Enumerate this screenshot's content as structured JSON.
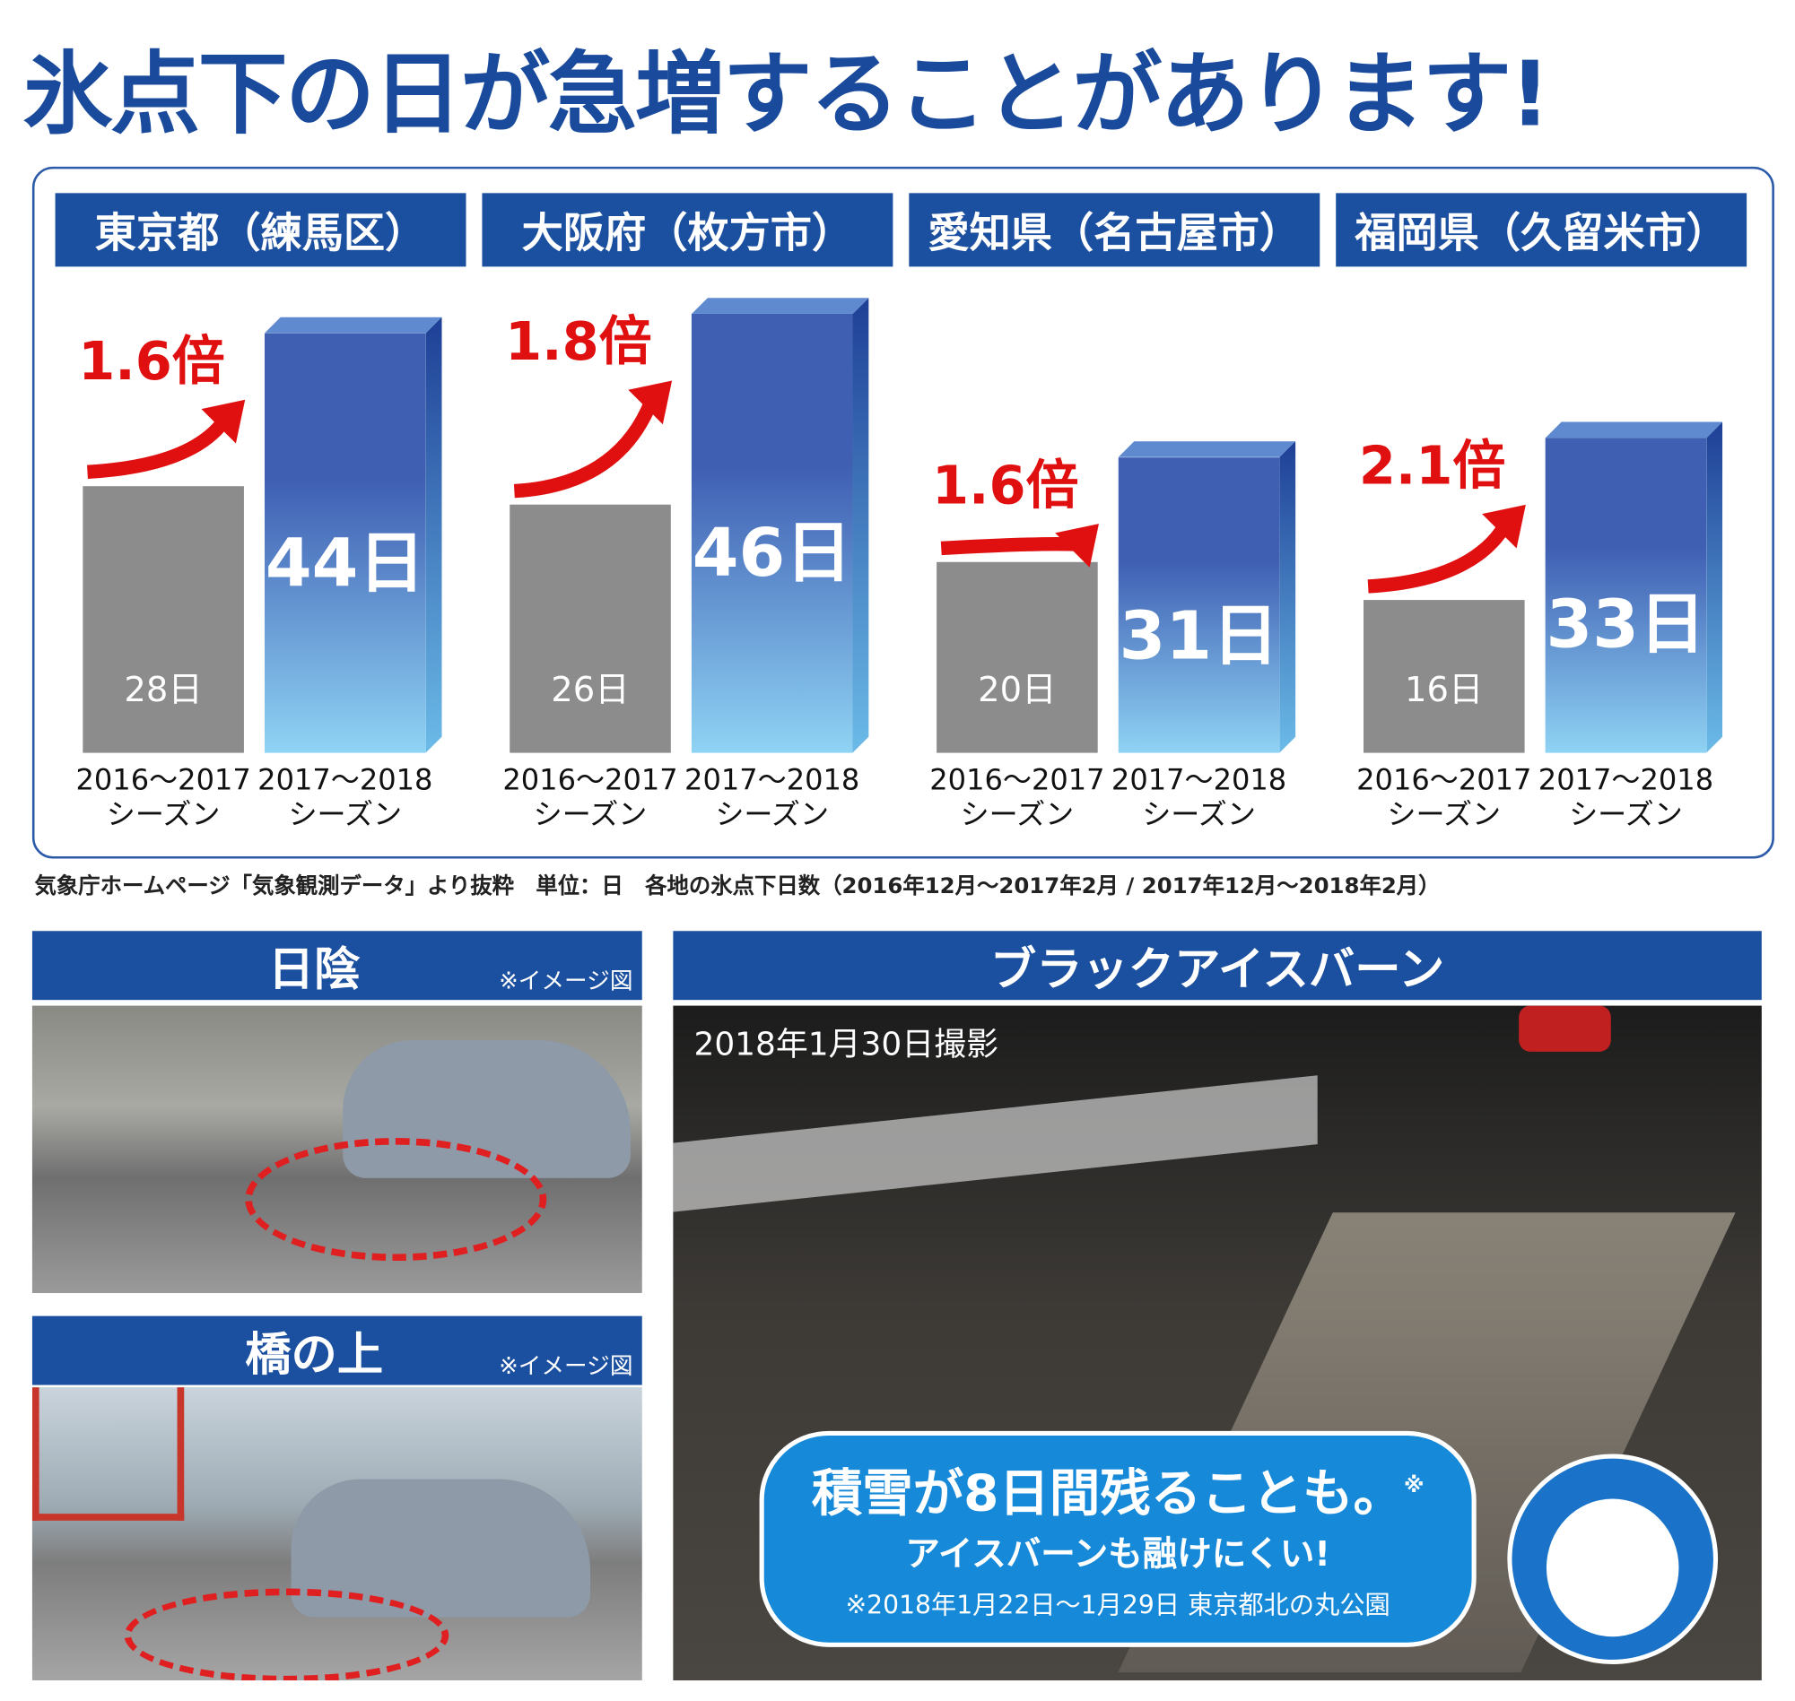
{
  "title": "氷点下の日が急増することがあります!",
  "chart_data": [
    {
      "type": "bar",
      "title": "東京都（練馬区）",
      "categories": [
        "2016～2017\nシーズン",
        "2017～2018\nシーズン"
      ],
      "values": [
        28,
        44
      ],
      "value_labels": [
        "28日",
        "44日"
      ],
      "colors": [
        "#8c8c8c",
        "#3f5fb3"
      ],
      "annotation": "1.6倍"
    },
    {
      "type": "bar",
      "title": "大阪府（枚方市）",
      "categories": [
        "2016～2017\nシーズン",
        "2017～2018\nシーズン"
      ],
      "values": [
        26,
        46
      ],
      "value_labels": [
        "26日",
        "46日"
      ],
      "colors": [
        "#8c8c8c",
        "#3f5fb3"
      ],
      "annotation": "1.8倍"
    },
    {
      "type": "bar",
      "title": "愛知県（名古屋市）",
      "categories": [
        "2016～2017\nシーズン",
        "2017～2018\nシーズン"
      ],
      "values": [
        20,
        31
      ],
      "value_labels": [
        "20日",
        "31日"
      ],
      "colors": [
        "#8c8c8c",
        "#3f5fb3"
      ],
      "annotation": "1.6倍"
    },
    {
      "type": "bar",
      "title": "福岡県（久留米市）",
      "categories": [
        "2016～2017\nシーズン",
        "2017～2018\nシーズン"
      ],
      "values": [
        16,
        33
      ],
      "value_labels": [
        "16日",
        "33日"
      ],
      "colors": [
        "#8c8c8c",
        "#3f5fb3"
      ],
      "annotation": "2.1倍"
    }
  ],
  "source_note": "気象庁ホームページ「気象観測データ」より抜粋　単位：日　各地の氷点下日数（2016年12月～2017年2月 / 2017年12月～2018年2月）",
  "photos": [
    {
      "title": "日陰",
      "note": "※イメージ図"
    },
    {
      "title": "橋の上",
      "note": "※イメージ図"
    },
    {
      "title": "ブラックアイスバーン",
      "date": "2018年1月30日撮影"
    }
  ],
  "callout": {
    "headline": "積雪が8日間残ることも。",
    "mark": "※",
    "subline": "アイスバーンも融けにくい!",
    "footnote": "※2018年1月22日～1月29日 東京都北の丸公園"
  }
}
